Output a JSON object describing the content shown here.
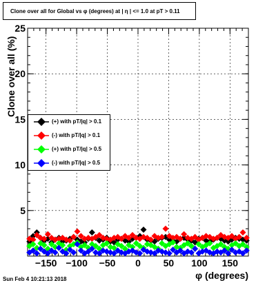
{
  "title": "Clone  over all for Global vs φ (degrees) at | η | <= 1.0 at pT > 0.11",
  "date_label": "Sun Feb  4 10:21:13 2018",
  "chart_data": {
    "type": "scatter",
    "title": "Clone  over all for Global vs φ (degrees) at | η | <= 1.0 at pT > 0.11",
    "xlabel": "φ (degrees)",
    "ylabel": "Clone  over all (%)",
    "xlim": [
      -180,
      180
    ],
    "ylim": [
      0,
      25
    ],
    "xticks": [
      -150,
      -100,
      -50,
      0,
      50,
      100,
      150
    ],
    "xtick_labels": [
      "−150",
      "−100",
      "−50",
      "0",
      "50",
      "100",
      "150"
    ],
    "yticks": [
      5,
      10,
      15,
      20,
      25
    ],
    "ytick_labels": [
      "5",
      "10",
      "15",
      "20",
      "25"
    ],
    "grid": true,
    "legend_position": "center-left",
    "series": [
      {
        "name": "(+) with pT/|q| > 0.1",
        "color": "#000000",
        "x": [
          -177,
          -171,
          -165,
          -159,
          -153,
          -147,
          -141,
          -135,
          -129,
          -123,
          -117,
          -111,
          -105,
          -99,
          -93,
          -87,
          -81,
          -75,
          -69,
          -63,
          -57,
          -51,
          -45,
          -39,
          -33,
          -27,
          -21,
          -15,
          -9,
          -3,
          3,
          9,
          15,
          21,
          27,
          33,
          39,
          45,
          51,
          57,
          63,
          69,
          75,
          81,
          87,
          93,
          99,
          105,
          111,
          117,
          123,
          129,
          135,
          141,
          147,
          153,
          159,
          165,
          171,
          177
        ],
        "values": [
          1.6,
          2.2,
          2.6,
          2.0,
          1.7,
          1.9,
          1.5,
          1.8,
          2.0,
          1.6,
          1.7,
          1.9,
          2.1,
          1.8,
          1.6,
          1.5,
          1.9,
          2.6,
          2.0,
          1.7,
          1.8,
          2.0,
          1.6,
          1.5,
          1.8,
          1.9,
          1.7,
          1.6,
          1.9,
          2.0,
          2.2,
          2.9,
          1.8,
          1.7,
          1.6,
          1.9,
          2.0,
          2.1,
          1.8,
          1.7,
          1.6,
          1.9,
          2.0,
          1.8,
          1.7,
          1.5,
          1.9,
          2.0,
          1.7,
          1.6,
          1.8,
          2.0,
          1.9,
          1.7,
          1.6,
          1.8,
          2.0,
          1.9,
          1.8,
          1.7
        ]
      },
      {
        "name": "(-) with pT/|q| > 0.1",
        "color": "#ff0000",
        "x": [
          -177,
          -171,
          -165,
          -159,
          -153,
          -147,
          -141,
          -135,
          -129,
          -123,
          -117,
          -111,
          -105,
          -99,
          -93,
          -87,
          -81,
          -75,
          -69,
          -63,
          -57,
          -51,
          -45,
          -39,
          -33,
          -27,
          -21,
          -15,
          -9,
          -3,
          3,
          9,
          15,
          21,
          27,
          33,
          39,
          45,
          51,
          57,
          63,
          69,
          75,
          81,
          87,
          93,
          99,
          105,
          111,
          117,
          123,
          129,
          135,
          141,
          147,
          153,
          159,
          165,
          171,
          177
        ],
        "values": [
          1.9,
          1.8,
          2.3,
          2.0,
          1.9,
          2.4,
          2.0,
          1.8,
          1.9,
          2.0,
          1.8,
          1.7,
          2.1,
          2.7,
          2.2,
          1.9,
          2.0,
          1.9,
          2.1,
          2.3,
          2.0,
          1.9,
          1.8,
          2.0,
          2.1,
          1.9,
          2.2,
          2.0,
          2.3,
          2.0,
          1.9,
          2.1,
          2.0,
          1.8,
          2.2,
          2.0,
          2.1,
          3.0,
          2.2,
          2.0,
          2.1,
          1.9,
          2.4,
          2.0,
          1.9,
          2.1,
          1.8,
          2.0,
          2.2,
          2.1,
          1.9,
          2.0,
          2.3,
          2.1,
          2.0,
          2.2,
          1.9,
          2.1,
          2.6,
          2.0
        ]
      },
      {
        "name": "(+) with pT/|q| > 0.5",
        "color": "#00ff00",
        "x": [
          -177,
          -171,
          -165,
          -159,
          -153,
          -147,
          -141,
          -135,
          -129,
          -123,
          -117,
          -111,
          -105,
          -99,
          -93,
          -87,
          -81,
          -75,
          -69,
          -63,
          -57,
          -51,
          -45,
          -39,
          -33,
          -27,
          -21,
          -15,
          -9,
          -3,
          3,
          9,
          15,
          21,
          27,
          33,
          39,
          45,
          51,
          57,
          63,
          69,
          75,
          81,
          87,
          93,
          99,
          105,
          111,
          117,
          123,
          129,
          135,
          141,
          147,
          153,
          159,
          165,
          171,
          177
        ],
        "values": [
          1.1,
          1.3,
          0.9,
          1.4,
          1.2,
          0.8,
          1.3,
          1.0,
          1.4,
          1.2,
          0.7,
          1.1,
          1.3,
          1.5,
          1.0,
          1.2,
          0.9,
          1.3,
          1.1,
          0.8,
          1.2,
          1.4,
          1.0,
          0.9,
          1.3,
          1.1,
          0.8,
          1.2,
          1.0,
          1.4,
          1.1,
          0.9,
          1.3,
          1.2,
          1.0,
          0.8,
          1.4,
          1.1,
          1.3,
          1.5,
          1.0,
          0.9,
          1.2,
          1.4,
          1.1,
          0.8,
          1.3,
          1.0,
          1.2,
          1.4,
          0.9,
          1.1,
          1.3,
          1.0,
          0.8,
          1.2,
          1.4,
          1.1,
          1.3,
          1.0
        ]
      },
      {
        "name": "(-) with pT/|q| > 0.5",
        "color": "#0000ff",
        "x": [
          -177,
          -171,
          -165,
          -159,
          -153,
          -147,
          -141,
          -135,
          -129,
          -123,
          -117,
          -111,
          -105,
          -99,
          -93,
          -87,
          -81,
          -75,
          -69,
          -63,
          -57,
          -51,
          -45,
          -39,
          -33,
          -27,
          -21,
          -15,
          -9,
          -3,
          3,
          9,
          15,
          21,
          27,
          33,
          39,
          45,
          51,
          57,
          63,
          69,
          75,
          81,
          87,
          93,
          99,
          105,
          111,
          117,
          123,
          129,
          135,
          141,
          147,
          153,
          159,
          165,
          171,
          177
        ],
        "values": [
          0.4,
          0.6,
          0.3,
          0.8,
          0.5,
          0.3,
          0.6,
          0.4,
          0.9,
          0.5,
          0.3,
          0.7,
          0.4,
          1.3,
          0.6,
          0.3,
          0.5,
          0.8,
          0.4,
          0.3,
          0.6,
          0.5,
          0.4,
          0.3,
          0.6,
          0.4,
          0.3,
          0.5,
          0.6,
          0.4,
          0.3,
          0.7,
          0.5,
          0.4,
          0.3,
          0.6,
          0.5,
          0.4,
          0.3,
          0.7,
          0.4,
          0.6,
          0.3,
          0.5,
          0.4,
          0.8,
          0.3,
          0.5,
          0.6,
          0.4,
          0.3,
          0.5,
          0.4,
          0.6,
          0.3,
          0.7,
          0.4,
          0.5,
          0.3,
          0.6
        ]
      }
    ]
  }
}
